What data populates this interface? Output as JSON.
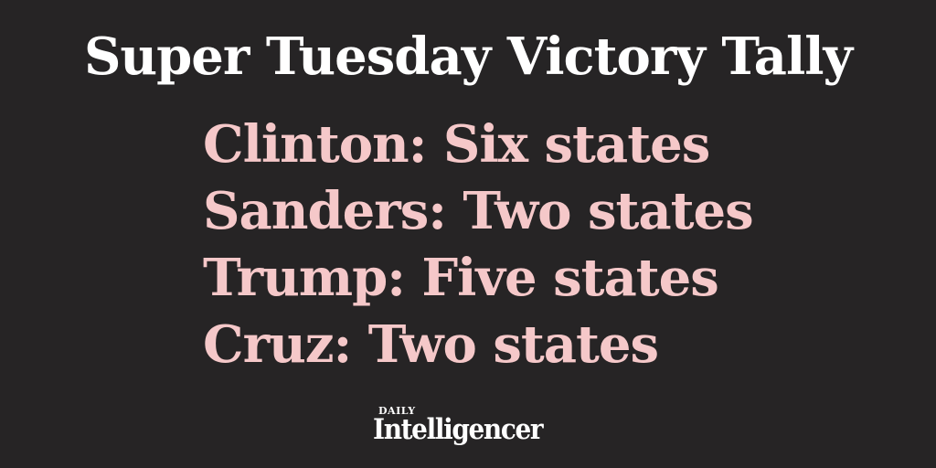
{
  "title": "Super Tuesday Victory Tally",
  "tally": [
    {
      "text": "Clinton: Six states"
    },
    {
      "text": "Sanders: Two states"
    },
    {
      "text": "Trump: Five states"
    },
    {
      "text": "Cruz: Two states"
    }
  ],
  "logo": {
    "small": "DAILY",
    "main": "Intelligencer"
  },
  "colors": {
    "background": "#262425",
    "title": "#ffffff",
    "tally": "#f5c8c9"
  }
}
